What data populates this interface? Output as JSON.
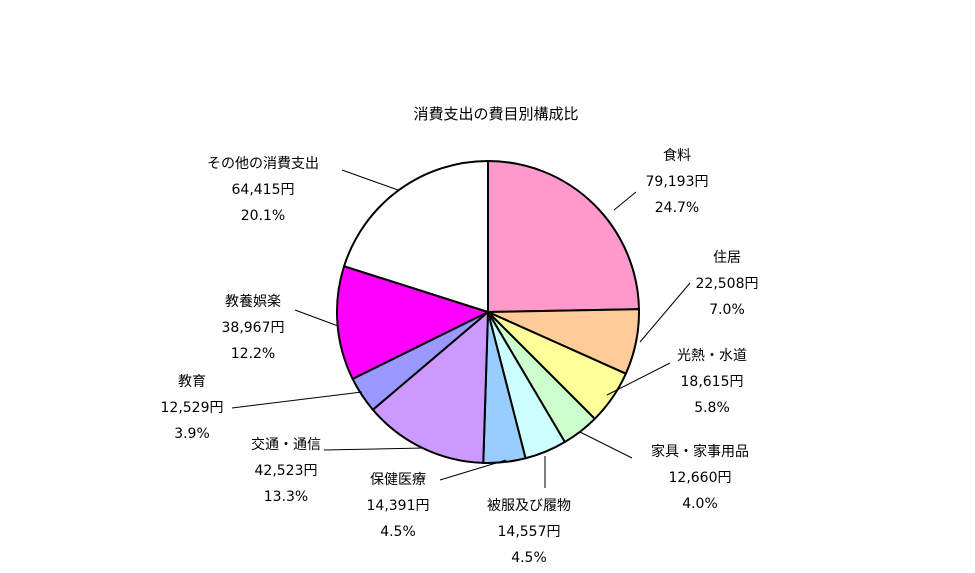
{
  "chart_data": {
    "type": "pie",
    "title": "消費支出の費目別構成比",
    "start": "12 o'clock",
    "direction": "clockwise",
    "slices": [
      {
        "label": "食料",
        "amount": "79,193円",
        "percent": "24.7%",
        "value": 24.7,
        "color": "#ff99cc"
      },
      {
        "label": "住居",
        "amount": "22,508円",
        "percent": "7.0%",
        "value": 7.0,
        "color": "#ffcc99"
      },
      {
        "label": "光熱・水道",
        "amount": "18,615円",
        "percent": "5.8%",
        "value": 5.8,
        "color": "#ffff99"
      },
      {
        "label": "家具・家事用品",
        "amount": "12,660円",
        "percent": "4.0%",
        "value": 4.0,
        "color": "#ccffcc"
      },
      {
        "label": "被服及び履物",
        "amount": "14,557円",
        "percent": "4.5%",
        "value": 4.5,
        "color": "#ccffff"
      },
      {
        "label": "保健医療",
        "amount": "14,391円",
        "percent": "4.5%",
        "value": 4.5,
        "color": "#99ccff"
      },
      {
        "label": "交通・通信",
        "amount": "42,523円",
        "percent": "13.3%",
        "value": 13.3,
        "color": "#cc99ff"
      },
      {
        "label": "教育",
        "amount": "12,529円",
        "percent": "3.9%",
        "value": 3.9,
        "color": "#9999ff"
      },
      {
        "label": "教養娯楽",
        "amount": "38,967円",
        "percent": "12.2%",
        "value": 12.2,
        "color": "#ff00ff"
      },
      {
        "label": "その他の消費支出",
        "amount": "64,415円",
        "percent": "20.1%",
        "value": 20.1,
        "color": "#ffffff"
      }
    ]
  }
}
